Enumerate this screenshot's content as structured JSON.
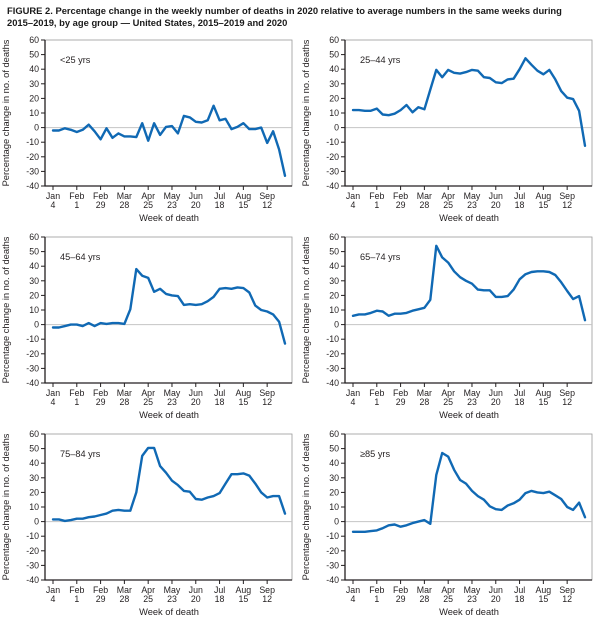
{
  "title": "FIGURE 2. Percentage change in the weekly number of deaths in 2020 relative to average numbers in the same weeks during 2015–2019, by age group — United States, 2015–2019 and 2020",
  "chart_data": {
    "type": "line",
    "layout": "grid-3-rows-2-cols",
    "xlabel": "Week of death",
    "ylabel": "Percentage change in no. of deaths",
    "ylim": [
      -40,
      60
    ],
    "ytick_values": [
      60,
      50,
      40,
      30,
      20,
      10,
      0,
      -10,
      -20,
      -30,
      -40
    ],
    "n_weeks": 40,
    "x_tick_weeks": [
      1,
      5,
      9,
      13,
      17,
      21,
      25,
      29,
      33,
      37
    ],
    "x_week_labels": [
      [
        "Jan",
        "4"
      ],
      [
        "Feb",
        "1"
      ],
      [
        "Feb",
        "29"
      ],
      [
        "Mar",
        "28"
      ],
      [
        "Apr",
        "25"
      ],
      [
        "May",
        "23"
      ],
      [
        "Jun",
        "20"
      ],
      [
        "Jul",
        "18"
      ],
      [
        "Aug",
        "15"
      ],
      [
        "Sep",
        "12"
      ]
    ],
    "grid": "zero-line-only",
    "legend": "none",
    "line_color": "#1069b4",
    "axis_color": "#231f20",
    "text_color": "#231f20",
    "frame_color": "#999999",
    "zero_line_color": "#c4c4c4",
    "panels": [
      {
        "label": "<25 yrs",
        "values": [
          -2,
          -2,
          -0.5,
          -1.5,
          -3,
          -1.5,
          2,
          -2.5,
          -8,
          -0.5,
          -7,
          -4,
          -6,
          -6,
          -6.5,
          3,
          -9,
          3,
          -5,
          0.5,
          1,
          -4,
          8,
          7,
          4,
          3.5,
          5,
          15,
          5,
          6,
          -1,
          0.5,
          3,
          -1,
          -1,
          0,
          -10.5,
          -2.5,
          -15,
          -33
        ]
      },
      {
        "label": "25–44 yrs",
        "values": [
          12,
          12,
          11.5,
          11.5,
          13,
          9,
          8.5,
          9.5,
          12,
          15.5,
          10.5,
          14,
          12.5,
          26,
          39.5,
          34.5,
          39.5,
          37.5,
          37,
          38,
          39.5,
          39,
          34.5,
          34,
          31,
          30.5,
          33,
          33.5,
          40,
          47.5,
          43,
          39,
          36.5,
          39.5,
          33,
          25,
          20.5,
          19.5,
          11.5,
          -12.5
        ]
      },
      {
        "label": "45–64 yrs",
        "values": [
          -2,
          -2,
          -1,
          0,
          0,
          -1,
          1,
          -1,
          1,
          0.5,
          1,
          1,
          0.5,
          10.5,
          38,
          33.5,
          32,
          22.5,
          24.5,
          21,
          20,
          19.5,
          13.5,
          14,
          13.5,
          14,
          16,
          19,
          24.5,
          25,
          24.5,
          25.5,
          25,
          22,
          13,
          10,
          9,
          7,
          2,
          -13
        ]
      },
      {
        "label": "65–74 yrs",
        "values": [
          6,
          7,
          7,
          8,
          9.5,
          9,
          6,
          7.5,
          7.5,
          8,
          9.5,
          10.5,
          11.5,
          17,
          54,
          46,
          42.5,
          36.5,
          32.5,
          30,
          28,
          24,
          23.5,
          23.5,
          19,
          19,
          19.5,
          24,
          31,
          34.5,
          36,
          36.5,
          36.5,
          36,
          34,
          29,
          23,
          17.5,
          19.5,
          3
        ]
      },
      {
        "label": "75–84 yrs",
        "values": [
          1.5,
          1.5,
          0.5,
          1,
          2,
          2,
          3,
          3.5,
          4.5,
          5.5,
          7.5,
          8,
          7.5,
          7.5,
          20,
          45,
          50.5,
          50.5,
          38,
          33.5,
          28,
          25,
          21,
          20.5,
          15.5,
          15,
          16.5,
          17.5,
          19.5,
          26,
          32.5,
          32.5,
          33,
          31.5,
          26,
          20,
          16.5,
          17.5,
          17.5,
          5.5
        ]
      },
      {
        "label": "≥85 yrs",
        "values": [
          -7,
          -7,
          -7,
          -6.5,
          -6,
          -4.5,
          -2.5,
          -2,
          -3.5,
          -2.5,
          -1,
          0,
          1,
          -1.5,
          32,
          47,
          44.5,
          35.5,
          28.5,
          26,
          21,
          17.5,
          15,
          10.5,
          8.5,
          8,
          11,
          12.5,
          15,
          19.5,
          21,
          20,
          19.5,
          20.5,
          18,
          15.5,
          10,
          8,
          13,
          3
        ]
      }
    ]
  }
}
